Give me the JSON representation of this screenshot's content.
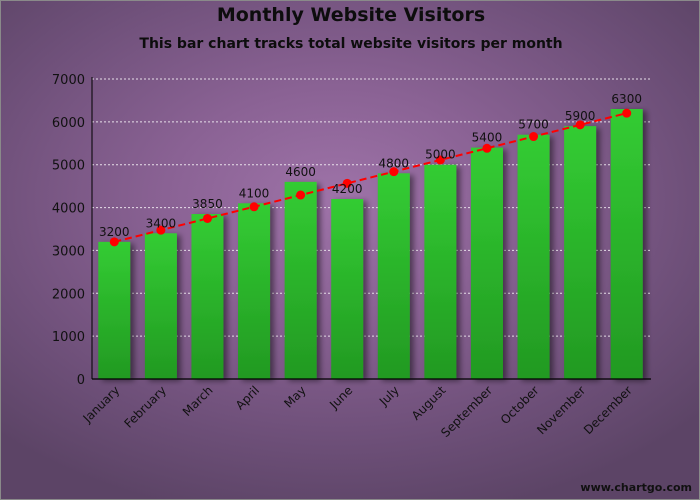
{
  "chart_data": {
    "type": "bar",
    "title": "Monthly Website Visitors",
    "subtitle": "This bar chart tracks total website visitors per month",
    "xlabel": "",
    "ylabel": "",
    "categories": [
      "January",
      "February",
      "March",
      "April",
      "May",
      "June",
      "July",
      "August",
      "September",
      "October",
      "November",
      "December"
    ],
    "values": [
      3200,
      3400,
      3850,
      4100,
      4600,
      4200,
      4800,
      5000,
      5400,
      5700,
      5900,
      6300
    ],
    "data_labels": [
      "3200",
      "3400",
      "3850",
      "4100",
      "4600",
      "4200",
      "4800",
      "5000",
      "5400",
      "5700",
      "5900",
      "6300"
    ],
    "trendline": {
      "style": "dashed",
      "color": "#ff0000",
      "values": [
        3200,
        3473,
        3746,
        4019,
        4292,
        4565,
        4838,
        5111,
        5384,
        5657,
        5930,
        6203
      ]
    },
    "ylim": [
      0,
      7000
    ],
    "yticks": [
      0,
      1000,
      2000,
      3000,
      4000,
      5000,
      6000,
      7000
    ],
    "grid": true,
    "legend": null,
    "colors": {
      "bar_top": "#33cc33",
      "bar_bottom": "#229922",
      "trend": "#ff0000",
      "grid": "#e8e0ea",
      "axis": "#000000"
    }
  },
  "watermark": "www.chartgo.com"
}
